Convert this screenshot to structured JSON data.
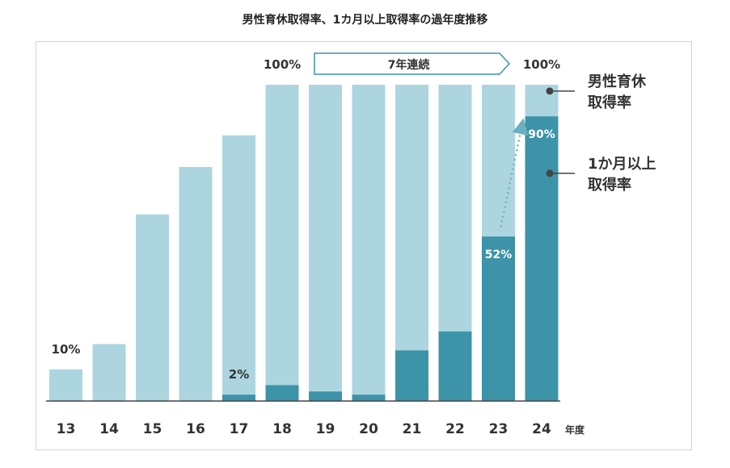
{
  "title": "男性育休取得率、1カ月以上取得率の過年度推移",
  "colors": {
    "total": "#acd5e0",
    "long": "#3d93a8",
    "axis": "#444444",
    "text": "#333333",
    "arrow": "#6bb0c0"
  },
  "chart_data": {
    "type": "bar",
    "categories": [
      "13",
      "14",
      "15",
      "16",
      "17",
      "18",
      "19",
      "20",
      "21",
      "22",
      "23",
      "24"
    ],
    "x_unit": "年度",
    "ylim": [
      0,
      100
    ],
    "series": [
      {
        "name": "男性育休取得率",
        "values": [
          10,
          18,
          59,
          74,
          84,
          100,
          100,
          100,
          100,
          100,
          100,
          100
        ]
      },
      {
        "name": "1か月以上取得率",
        "values": [
          0,
          0,
          0,
          0,
          2,
          5,
          3,
          2,
          16,
          22,
          52,
          90
        ]
      }
    ],
    "data_labels": [
      {
        "text": "10%",
        "category": "13",
        "series": 0
      },
      {
        "text": "2%",
        "category": "17",
        "series": 1
      },
      {
        "text": "100%",
        "category": "18",
        "series": 0
      },
      {
        "text": "100%",
        "category": "24",
        "series": 0
      },
      {
        "text": "52%",
        "category": "23",
        "series": 1
      },
      {
        "text": "90%",
        "category": "24",
        "series": 1
      }
    ],
    "callout": {
      "text": "7年連続",
      "from": "18",
      "to": "24"
    },
    "legend": [
      {
        "line1": "男性育休",
        "line2": "取得率"
      },
      {
        "line1": "1か月以上",
        "line2": "取得率"
      }
    ],
    "legend_position": "right",
    "grid": false
  }
}
